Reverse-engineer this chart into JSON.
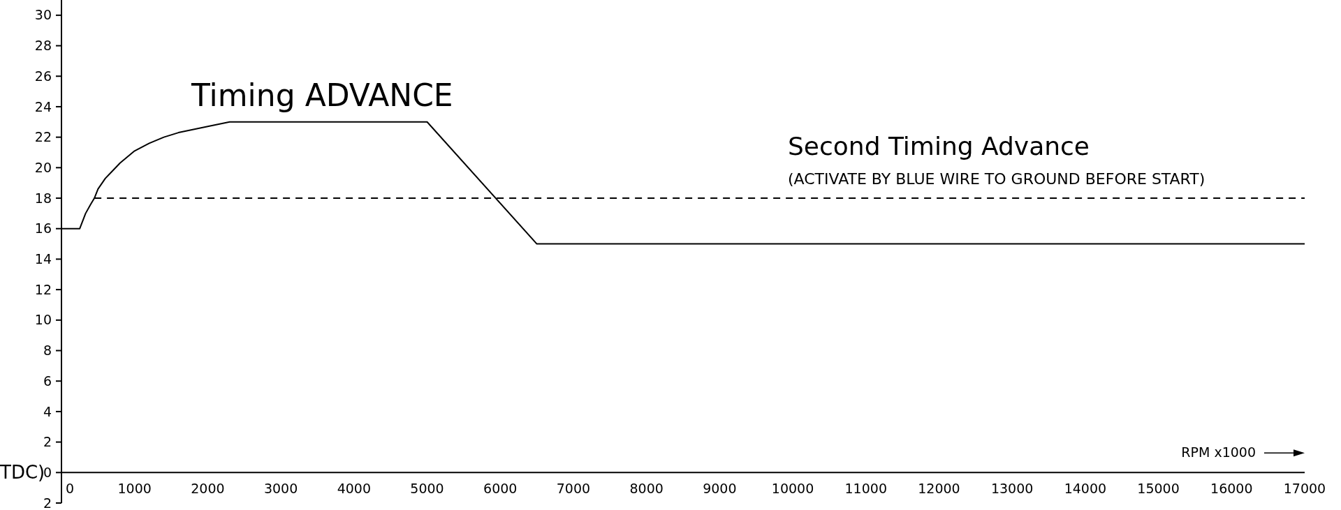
{
  "chart_data": {
    "type": "line",
    "xlabel": "RPM x1000",
    "ylabel": "TDC)",
    "xlim": [
      0,
      17000
    ],
    "ylim": [
      -2,
      31
    ],
    "xticks": [
      0,
      1000,
      2000,
      3000,
      4000,
      5000,
      6000,
      7000,
      8000,
      9000,
      10000,
      11000,
      12000,
      13000,
      14000,
      15000,
      16000,
      17000
    ],
    "yticks": [
      {
        "value": -2,
        "label": "2"
      },
      0,
      2,
      4,
      6,
      8,
      10,
      12,
      14,
      16,
      18,
      20,
      22,
      24,
      26,
      28,
      30
    ],
    "series": [
      {
        "color": "#000000",
        "line_style": "solid",
        "x": [
          0,
          250,
          330,
          400,
          450,
          500,
          600,
          700,
          800,
          1000,
          1200,
          1400,
          1600,
          2000,
          2300,
          5000,
          6500,
          17000
        ],
        "values": [
          16,
          16,
          17,
          17.6,
          18,
          18.6,
          19.3,
          19.8,
          20.3,
          21.1,
          21.6,
          22,
          22.3,
          22.7,
          23,
          23,
          15,
          15
        ]
      },
      {
        "color": "#000000",
        "line_style": "dashed",
        "x": [
          450,
          17000
        ],
        "values": [
          18,
          18
        ]
      }
    ],
    "annotations": [
      "Timing ADVANCE",
      "Second Timing Advance",
      "(ACTIVATE BY BLUE WIRE TO GROUND BEFORE START)"
    ],
    "grid": false
  }
}
